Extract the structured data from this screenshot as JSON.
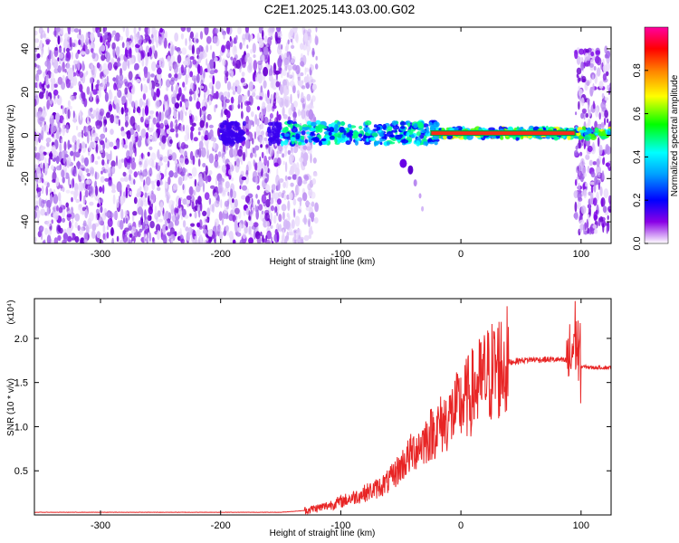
{
  "title": "C2E1.2025.143.03.00.G02",
  "colors": {
    "spectrum_low": "#7c00e6",
    "snr_line": "#e82525",
    "axis": "#000000",
    "background": "#ffffff"
  },
  "chart_data": [
    {
      "type": "heatmap",
      "xlabel": "Height of straight line (km)",
      "ylabel": "Frequency (Hz)",
      "xlim": [
        -355,
        125
      ],
      "ylim": [
        -50,
        50
      ],
      "xticks": [
        -300,
        -200,
        -100,
        0,
        100
      ],
      "yticks": [
        40,
        20,
        0,
        -20,
        -40
      ],
      "grid": false,
      "colorbar": {
        "label": "Normalized spectral amplitude",
        "range": [
          0.0,
          1.0
        ],
        "ticks": [
          "0.0",
          "0.2",
          "0.4",
          "0.6",
          "0.8"
        ],
        "colormap": "rainbow (purple-blue-cyan-green-yellow-red-magenta)"
      },
      "features": {
        "noise_region_x": [
          -355,
          -130
        ],
        "tone_band_x": [
          -200,
          125
        ],
        "tone_frequency_hz": 1,
        "noise_region_right_x": [
          95,
          125
        ]
      }
    },
    {
      "type": "line",
      "xlabel": "Height of straight line (km)",
      "ylabel": "SNR (10 * v/v)",
      "y_scale_label": "(x10⁴)",
      "xlim": [
        -355,
        125
      ],
      "ylim": [
        0,
        2.45
      ],
      "xticks": [
        -300,
        -200,
        -100,
        0,
        100
      ],
      "yticks": [
        0.5,
        1.0,
        1.5,
        2.0
      ],
      "grid": false,
      "series": [
        {
          "x": [
            -355,
            -300,
            -250,
            -200,
            -150,
            -130,
            -115,
            -100,
            -85,
            -70,
            -60,
            -50,
            -40,
            -30,
            -20,
            -10,
            0,
            10,
            20,
            30,
            40,
            50,
            60,
            70,
            80,
            90,
            92,
            95,
            100,
            110,
            125
          ],
          "y": [
            0.03,
            0.03,
            0.03,
            0.03,
            0.03,
            0.05,
            0.09,
            0.15,
            0.22,
            0.3,
            0.38,
            0.55,
            0.72,
            0.85,
            0.98,
            1.1,
            1.25,
            1.4,
            1.55,
            1.67,
            1.73,
            1.75,
            1.76,
            1.76,
            1.76,
            1.74,
            1.8,
            2.05,
            1.68,
            1.67,
            1.67
          ]
        }
      ]
    }
  ]
}
